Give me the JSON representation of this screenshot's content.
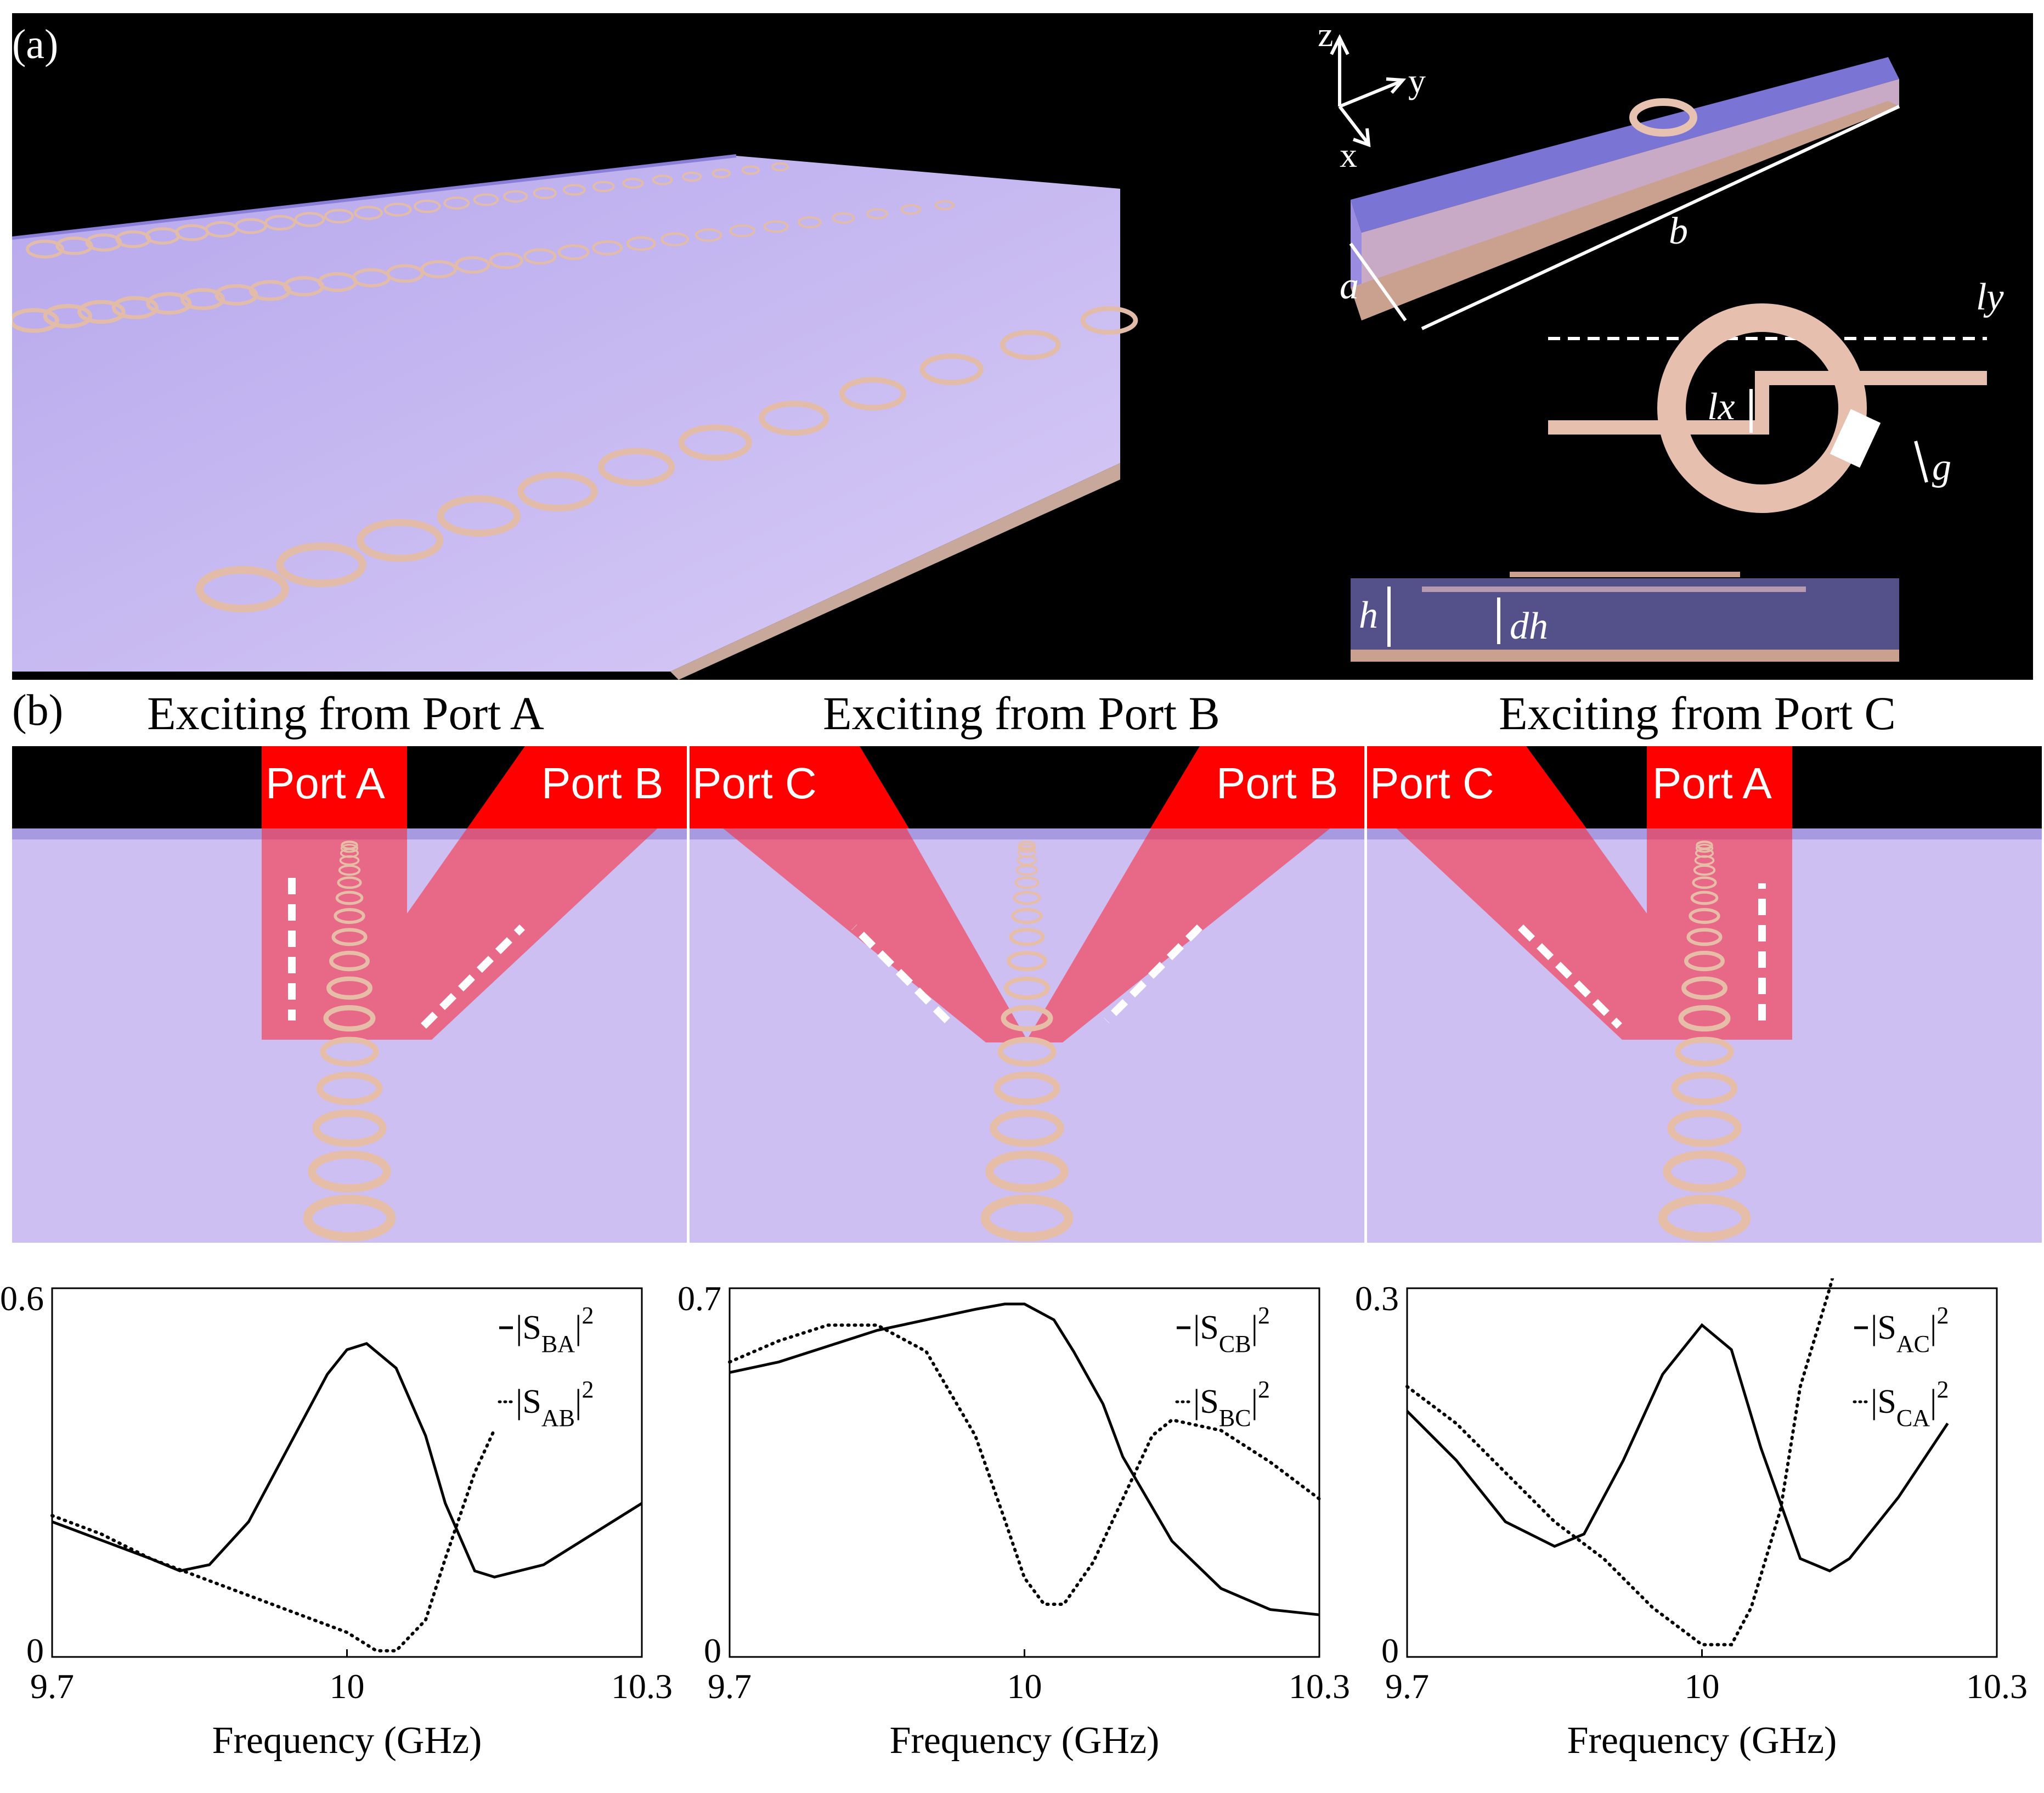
{
  "panel_a": {
    "label": "(a)",
    "axes": {
      "z": "z",
      "y": "y",
      "x": "x"
    },
    "dims": {
      "a": "a",
      "b": "b",
      "ly": "ly",
      "lx": "lx",
      "g": "g",
      "h": "h",
      "dh": "dh"
    }
  },
  "panel_b": {
    "label": "(b)",
    "titles": [
      "Exciting from Port A",
      "Exciting from Port B",
      "Exciting from Port C"
    ],
    "scenes": [
      {
        "left_port": "Port A",
        "right_port": "Port B"
      },
      {
        "left_port": "Port C",
        "right_port": "Port B"
      },
      {
        "left_port": "Port C",
        "right_port": "Port A"
      }
    ]
  },
  "colors": {
    "beam": "#ff0000",
    "substrate": "#c8b9f0",
    "ring": "#e8c4b4",
    "background": "#000000"
  },
  "chart_data": [
    {
      "type": "line",
      "xlabel": "Frequency (GHz)",
      "xlim": [
        9.7,
        10.3
      ],
      "ylim": [
        0,
        0.6
      ],
      "xticks": [
        "9.7",
        "10",
        "10.3"
      ],
      "yticks": [
        "0",
        "0.6"
      ],
      "series": [
        {
          "name": "|S_BA|^2",
          "legend_main": "|S",
          "legend_sub": "BA",
          "legend_sup": "2",
          "style": "solid",
          "x": [
            9.7,
            9.75,
            9.8,
            9.83,
            9.86,
            9.9,
            9.95,
            9.98,
            10.0,
            10.02,
            10.05,
            10.08,
            10.1,
            10.13,
            10.15,
            10.2,
            10.25,
            10.3
          ],
          "y": [
            0.22,
            0.19,
            0.16,
            0.14,
            0.15,
            0.22,
            0.37,
            0.46,
            0.5,
            0.51,
            0.47,
            0.36,
            0.25,
            0.14,
            0.13,
            0.15,
            0.2,
            0.25
          ]
        },
        {
          "name": "|S_AB|^2",
          "legend_main": "|S",
          "legend_sub": "AB",
          "legend_sup": "2",
          "style": "dotted",
          "x": [
            9.7,
            9.75,
            9.8,
            9.85,
            9.9,
            9.95,
            10.0,
            10.03,
            10.05,
            10.08,
            10.1,
            10.13,
            10.15
          ],
          "y": [
            0.23,
            0.2,
            0.16,
            0.13,
            0.1,
            0.07,
            0.04,
            0.01,
            0.01,
            0.06,
            0.16,
            0.3,
            0.37
          ]
        }
      ]
    },
    {
      "type": "line",
      "xlabel": "Frequency (GHz)",
      "xlim": [
        9.7,
        10.3
      ],
      "ylim": [
        0,
        0.7
      ],
      "xticks": [
        "9.7",
        "10",
        "10.3"
      ],
      "yticks": [
        "0",
        "0.7"
      ],
      "series": [
        {
          "name": "|S_CB|^2",
          "legend_main": "|S",
          "legend_sub": "CB",
          "legend_sup": "2",
          "style": "solid",
          "x": [
            9.7,
            9.75,
            9.8,
            9.85,
            9.9,
            9.95,
            9.98,
            10.0,
            10.03,
            10.05,
            10.08,
            10.1,
            10.15,
            10.2,
            10.25,
            10.3
          ],
          "y": [
            0.54,
            0.56,
            0.59,
            0.62,
            0.64,
            0.66,
            0.67,
            0.67,
            0.64,
            0.58,
            0.48,
            0.38,
            0.22,
            0.13,
            0.09,
            0.08
          ]
        },
        {
          "name": "|S_BC|^2",
          "legend_main": "|S",
          "legend_sub": "BC",
          "legend_sup": "2",
          "style": "dotted",
          "x": [
            9.7,
            9.75,
            9.8,
            9.85,
            9.9,
            9.95,
            9.98,
            10.0,
            10.02,
            10.04,
            10.07,
            10.1,
            10.13,
            10.15,
            10.2,
            10.25,
            10.3
          ],
          "y": [
            0.56,
            0.6,
            0.63,
            0.63,
            0.58,
            0.42,
            0.26,
            0.15,
            0.1,
            0.1,
            0.18,
            0.3,
            0.42,
            0.45,
            0.43,
            0.37,
            0.3
          ]
        }
      ]
    },
    {
      "type": "line",
      "xlabel": "Frequency (GHz)",
      "xlim": [
        9.7,
        10.3
      ],
      "ylim": [
        0,
        0.3
      ],
      "xticks": [
        "9.7",
        "10",
        "10.3"
      ],
      "yticks": [
        "0",
        "0.3"
      ],
      "series": [
        {
          "name": "|S_AC|^2",
          "legend_main": "|S",
          "legend_sub": "AC",
          "legend_sup": "2",
          "style": "solid",
          "x": [
            9.7,
            9.75,
            9.8,
            9.85,
            9.88,
            9.92,
            9.96,
            10.0,
            10.03,
            10.06,
            10.1,
            10.13,
            10.15,
            10.2,
            10.25
          ],
          "y": [
            0.2,
            0.16,
            0.11,
            0.09,
            0.1,
            0.16,
            0.23,
            0.27,
            0.25,
            0.17,
            0.08,
            0.07,
            0.08,
            0.13,
            0.19
          ]
        },
        {
          "name": "|S_CA|^2",
          "legend_main": "|S",
          "legend_sub": "CA",
          "legend_sup": "2",
          "style": "dotted",
          "x": [
            9.7,
            9.75,
            9.8,
            9.85,
            9.9,
            9.95,
            10.0,
            10.03,
            10.05,
            10.08,
            10.1,
            10.13,
            10.15
          ],
          "y": [
            0.22,
            0.19,
            0.15,
            0.11,
            0.08,
            0.04,
            0.01,
            0.01,
            0.04,
            0.12,
            0.22,
            0.3,
            0.36
          ]
        }
      ]
    }
  ]
}
